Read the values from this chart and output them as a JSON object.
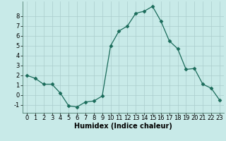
{
  "x": [
    0,
    1,
    2,
    3,
    4,
    5,
    6,
    7,
    8,
    9,
    10,
    11,
    12,
    13,
    14,
    15,
    16,
    17,
    18,
    19,
    20,
    21,
    22,
    23
  ],
  "y": [
    2.0,
    1.7,
    1.1,
    1.1,
    0.2,
    -1.1,
    -1.2,
    -0.7,
    -0.6,
    -0.1,
    5.0,
    6.5,
    7.0,
    8.3,
    8.5,
    9.0,
    7.5,
    5.5,
    4.7,
    2.6,
    2.7,
    1.1,
    0.7,
    -0.5
  ],
  "line_color": "#1a6b5a",
  "marker": "D",
  "marker_size": 2.5,
  "bg_color": "#c8eae8",
  "grid_color": "#aacccc",
  "xlabel": "Humidex (Indice chaleur)",
  "xlabel_fontsize": 7,
  "tick_fontsize": 6,
  "ylim": [
    -1.8,
    9.5
  ],
  "xlim": [
    -0.5,
    23.5
  ],
  "yticks": [
    -1,
    0,
    1,
    2,
    3,
    4,
    5,
    6,
    7,
    8
  ],
  "xticks": [
    0,
    1,
    2,
    3,
    4,
    5,
    6,
    7,
    8,
    9,
    10,
    11,
    12,
    13,
    14,
    15,
    16,
    17,
    18,
    19,
    20,
    21,
    22,
    23
  ]
}
